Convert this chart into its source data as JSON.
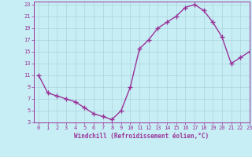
{
  "x": [
    0,
    1,
    2,
    3,
    4,
    5,
    6,
    7,
    8,
    9,
    10,
    11,
    12,
    13,
    14,
    15,
    16,
    17,
    18,
    19,
    20,
    21,
    22,
    23
  ],
  "y": [
    11,
    8,
    7.5,
    7,
    6.5,
    5.5,
    4.5,
    4,
    3.5,
    5,
    9,
    15.5,
    17,
    19,
    20,
    21,
    22.5,
    23,
    22,
    20,
    17.5,
    13,
    14,
    15
  ],
  "line_color": "#993399",
  "marker": "+",
  "marker_size": 4,
  "marker_lw": 1.0,
  "line_width": 1.0,
  "bg_color": "#c8eef5",
  "grid_color": "#aad4dc",
  "xlabel": "Windchill (Refroidissement éolien,°C)",
  "xlabel_color": "#993399",
  "tick_color": "#993399",
  "axis_color": "#993399",
  "xlim": [
    -0.5,
    23
  ],
  "ylim": [
    3,
    23.5
  ],
  "yticks": [
    3,
    5,
    7,
    9,
    11,
    13,
    15,
    17,
    19,
    21,
    23
  ],
  "xticks": [
    0,
    1,
    2,
    3,
    4,
    5,
    6,
    7,
    8,
    9,
    10,
    11,
    12,
    13,
    14,
    15,
    16,
    17,
    18,
    19,
    20,
    21,
    22,
    23
  ],
  "tick_fontsize": 5.0,
  "xlabel_fontsize": 5.5,
  "xlabel_fontweight": "bold"
}
